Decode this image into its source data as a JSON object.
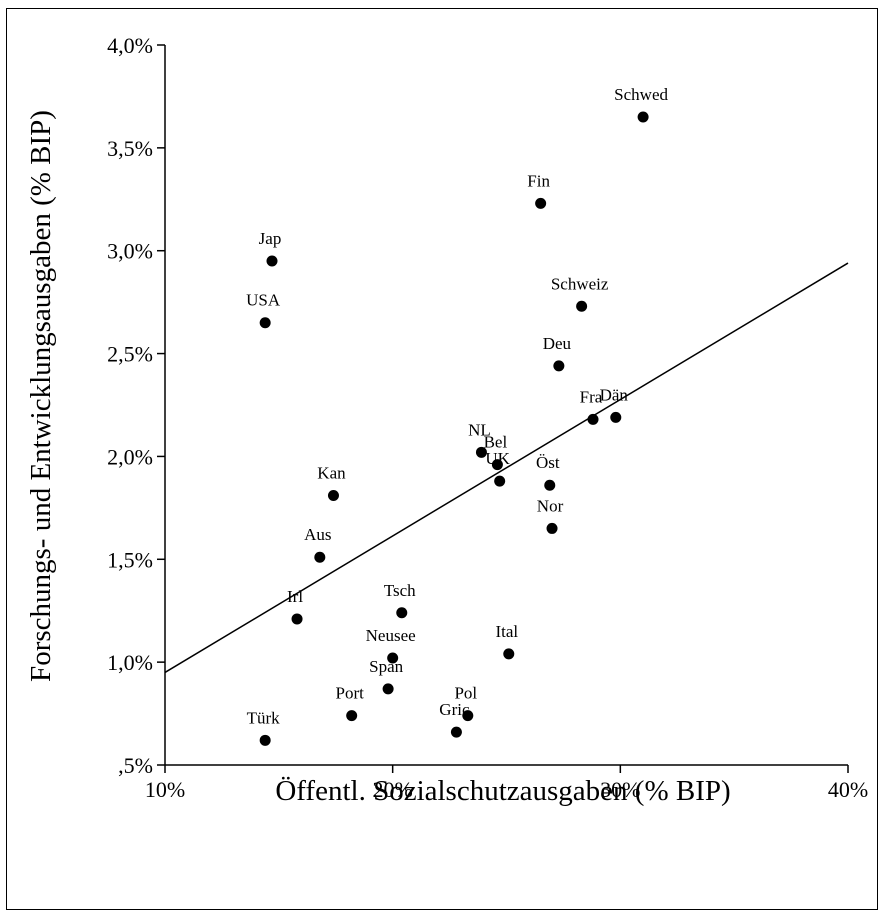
{
  "chart_data": {
    "type": "scatter",
    "title": "",
    "xlabel": "Öffentl. Sozialschutzausgaben (% BIP)",
    "ylabel": "Forschungs- und Entwicklungsausgaben (% BIP)",
    "xlim": [
      10,
      40
    ],
    "ylim": [
      0.5,
      4.0
    ],
    "x_ticks": [
      {
        "value": 10,
        "label": "10%"
      },
      {
        "value": 20,
        "label": "20%"
      },
      {
        "value": 30,
        "label": "30%"
      },
      {
        "value": 40,
        "label": "40%"
      }
    ],
    "y_ticks": [
      {
        "value": 0.5,
        "label": ",5%"
      },
      {
        "value": 1.0,
        "label": "1,0%"
      },
      {
        "value": 1.5,
        "label": "1,5%"
      },
      {
        "value": 2.0,
        "label": "2,0%"
      },
      {
        "value": 2.5,
        "label": "2,5%"
      },
      {
        "value": 3.0,
        "label": "3,0%"
      },
      {
        "value": 3.5,
        "label": "3,5%"
      },
      {
        "value": 4.0,
        "label": "4,0%"
      }
    ],
    "grid": false,
    "points": [
      {
        "label": "Schwed",
        "x": 31.0,
        "y": 3.65
      },
      {
        "label": "Fin",
        "x": 26.5,
        "y": 3.23
      },
      {
        "label": "Jap",
        "x": 14.7,
        "y": 2.95
      },
      {
        "label": "Schweiz",
        "x": 28.3,
        "y": 2.73
      },
      {
        "label": "USA",
        "x": 14.4,
        "y": 2.65
      },
      {
        "label": "Deu",
        "x": 27.3,
        "y": 2.44
      },
      {
        "label": "Fra",
        "x": 28.8,
        "y": 2.18
      },
      {
        "label": "Dän",
        "x": 29.8,
        "y": 2.19
      },
      {
        "label": "NL",
        "x": 23.9,
        "y": 2.02
      },
      {
        "label": "Bel",
        "x": 24.6,
        "y": 1.96
      },
      {
        "label": "UK",
        "x": 24.7,
        "y": 1.88
      },
      {
        "label": "Öst",
        "x": 26.9,
        "y": 1.86
      },
      {
        "label": "Kan",
        "x": 17.4,
        "y": 1.81
      },
      {
        "label": "Nor",
        "x": 27.0,
        "y": 1.65
      },
      {
        "label": "Aus",
        "x": 16.8,
        "y": 1.51
      },
      {
        "label": "Tsch",
        "x": 20.4,
        "y": 1.24
      },
      {
        "label": "Irl",
        "x": 15.8,
        "y": 1.21
      },
      {
        "label": "Ital",
        "x": 25.1,
        "y": 1.04
      },
      {
        "label": "Neusee",
        "x": 20.0,
        "y": 1.02
      },
      {
        "label": "Span",
        "x": 19.8,
        "y": 0.87
      },
      {
        "label": "Pol",
        "x": 23.3,
        "y": 0.74
      },
      {
        "label": "Port",
        "x": 18.2,
        "y": 0.74
      },
      {
        "label": "Gric",
        "x": 22.8,
        "y": 0.66
      },
      {
        "label": "Türk",
        "x": 14.4,
        "y": 0.62
      }
    ],
    "trendline": {
      "type": "linear",
      "x": [
        10,
        40
      ],
      "y": [
        0.95,
        2.94
      ]
    }
  }
}
